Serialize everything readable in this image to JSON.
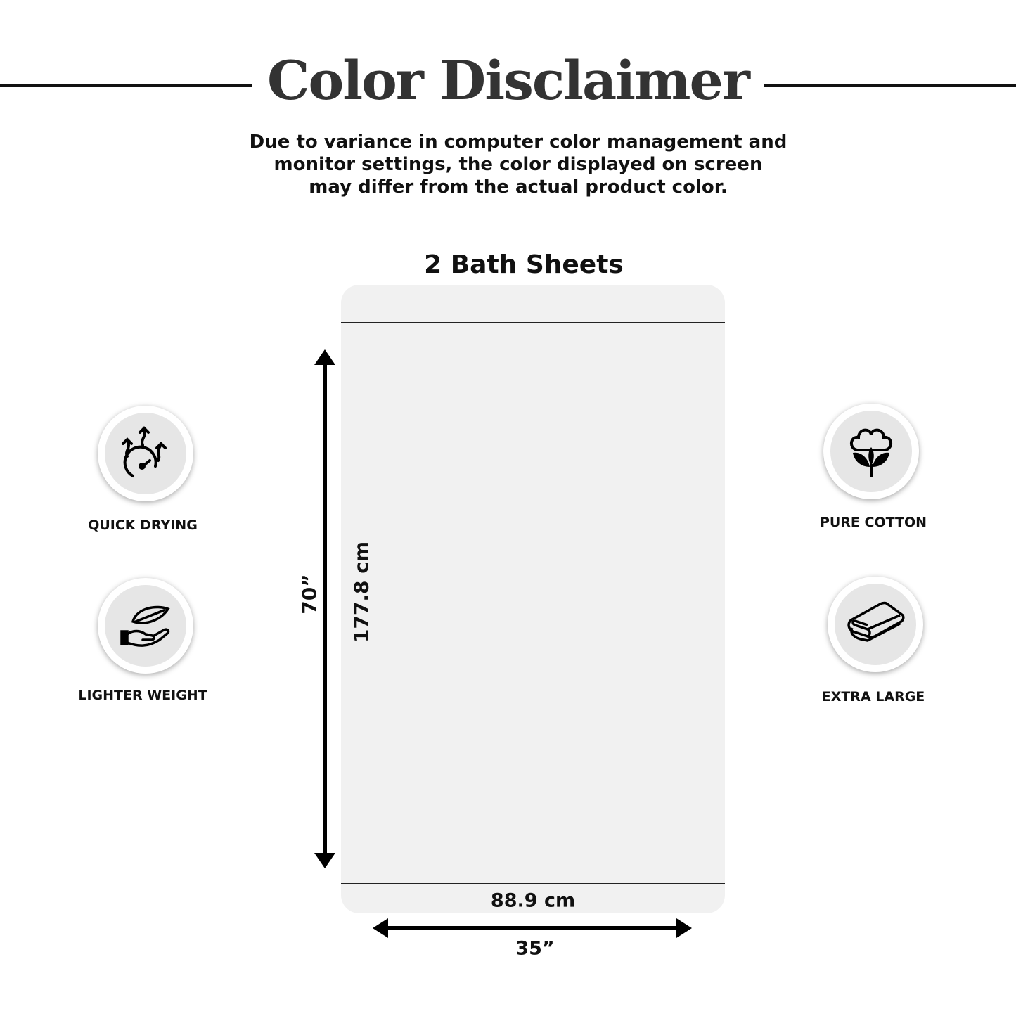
{
  "header": {
    "title": "Color Disclaimer",
    "description_lines": [
      "Due to variance in computer color management and",
      "monitor settings, the color displayed on screen",
      "may differ from the actual product color."
    ]
  },
  "product": {
    "title": "2 Bath Sheets",
    "height_in": "70”",
    "height_cm": "177.8 cm",
    "width_cm": "88.9 cm",
    "width_in": "35”",
    "towel_color": "#f1f1f1"
  },
  "features": [
    {
      "label": "QUICK DRYING",
      "icon": "quick-drying-gauge-icon"
    },
    {
      "label": "LIGHTER WEIGHT",
      "icon": "feather-hand-icon"
    },
    {
      "label": "PURE COTTON",
      "icon": "cotton-flower-icon"
    },
    {
      "label": "EXTRA LARGE",
      "icon": "folded-towel-icon"
    }
  ]
}
